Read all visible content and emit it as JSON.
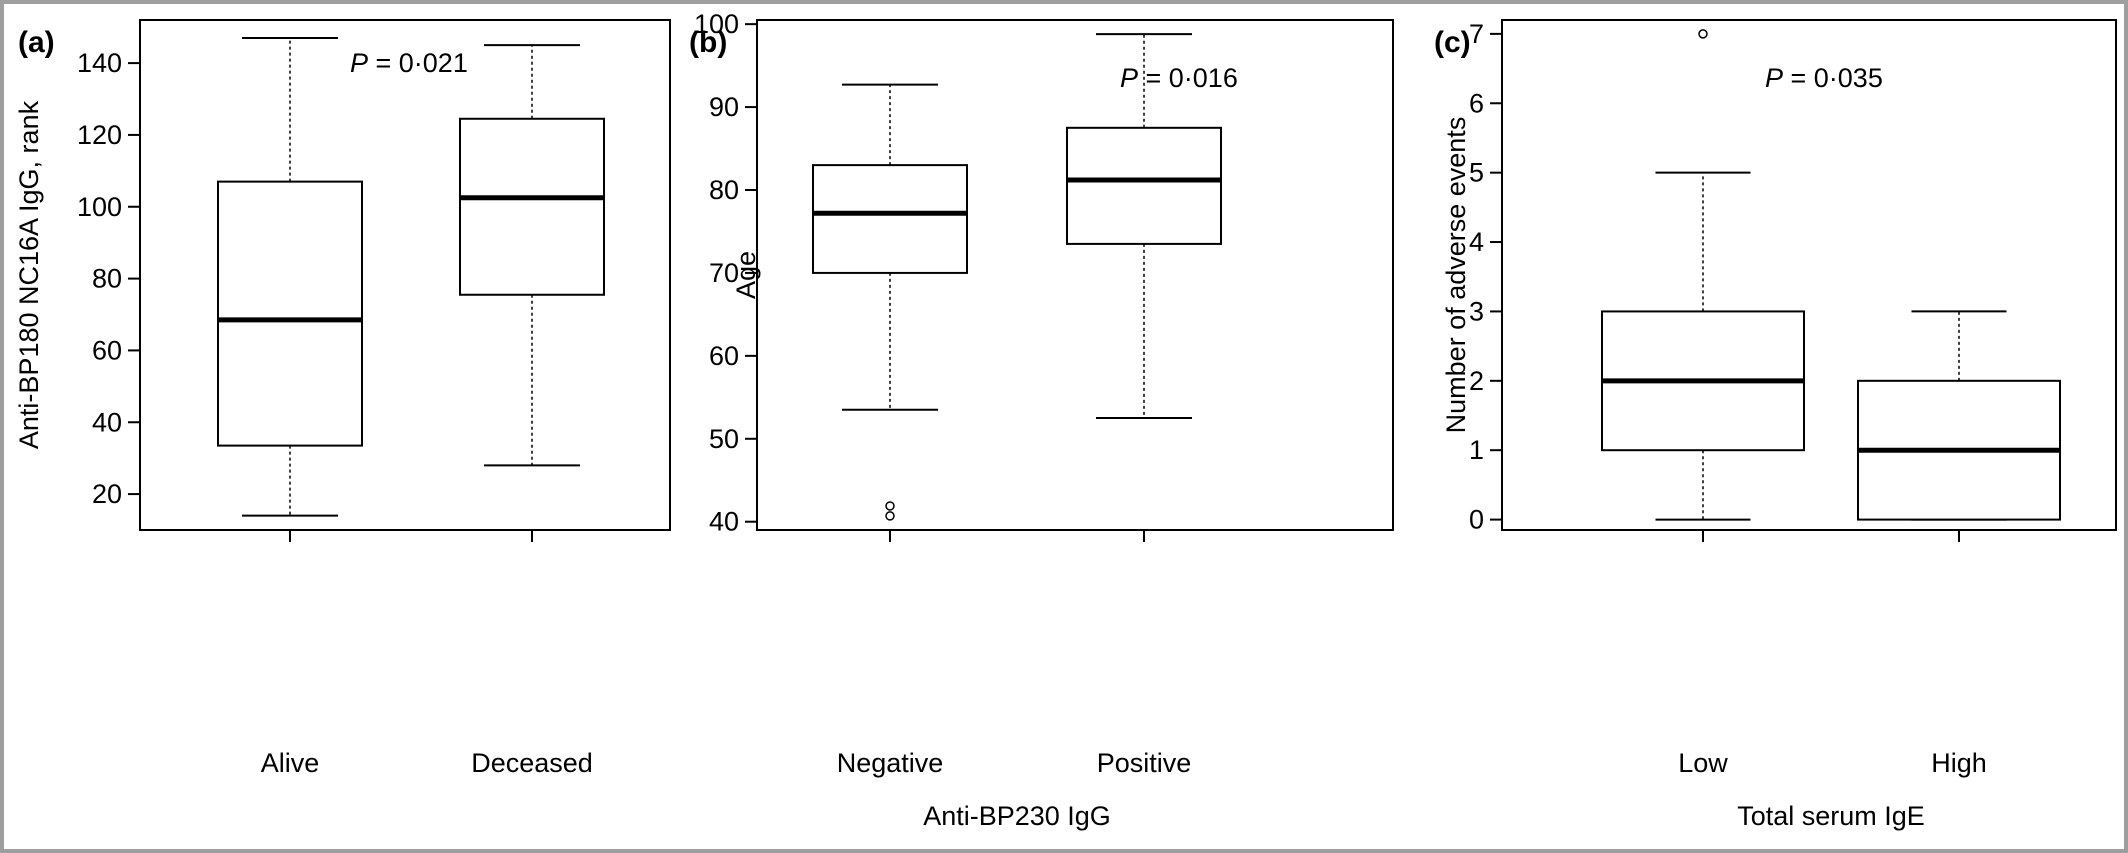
{
  "chart_data": [
    {
      "panel": "(a)",
      "type": "boxplot",
      "ylabel": "Anti-BP180 NC16A IgG, rank",
      "xlabel": "",
      "ylim": [
        10,
        152
      ],
      "yticks": [
        20,
        40,
        60,
        80,
        100,
        120,
        140
      ],
      "annotation": {
        "p_label": "P",
        "p_value": "= 0·021"
      },
      "boxes": [
        {
          "category": "Alive",
          "whisker_low": 14,
          "q1": 33.5,
          "median": 68.5,
          "q3": 107,
          "whisker_high": 147,
          "outliers": []
        },
        {
          "category": "Deceased",
          "whisker_low": 28,
          "q1": 75.5,
          "median": 102.5,
          "q3": 124.5,
          "whisker_high": 145,
          "outliers": []
        }
      ]
    },
    {
      "panel": "(b)",
      "type": "boxplot",
      "ylabel": "Age",
      "xlabel": "Anti-BP230 IgG",
      "ylim": [
        39,
        100.5
      ],
      "yticks": [
        40,
        50,
        60,
        70,
        80,
        90,
        100
      ],
      "annotation": {
        "p_label": "P",
        "p_value": "= 0·016"
      },
      "boxes": [
        {
          "category": "Negative",
          "whisker_low": 53.5,
          "q1": 70,
          "median": 77.2,
          "q3": 83,
          "whisker_high": 92.7,
          "outliers": [
            41.9,
            40.7
          ]
        },
        {
          "category": "Positive",
          "whisker_low": 52.5,
          "q1": 73.5,
          "median": 81.2,
          "q3": 87.5,
          "whisker_high": 98.8,
          "outliers": []
        }
      ]
    },
    {
      "panel": "(c)",
      "type": "boxplot",
      "ylabel": "Number of adverse events",
      "xlabel": "Total serum IgE",
      "ylim": [
        -0.15,
        7.2
      ],
      "yticks": [
        0,
        1,
        2,
        3,
        4,
        5,
        6,
        7
      ],
      "annotation": {
        "p_label": "P",
        "p_value": "= 0·035"
      },
      "boxes": [
        {
          "category": "Low",
          "whisker_low": 0,
          "q1": 1,
          "median": 2,
          "q3": 3,
          "whisker_high": 5,
          "outliers": [
            7
          ]
        },
        {
          "category": "High",
          "whisker_low": 0,
          "q1": 0,
          "median": 1,
          "q3": 2,
          "whisker_high": 3,
          "outliers": []
        }
      ]
    }
  ]
}
